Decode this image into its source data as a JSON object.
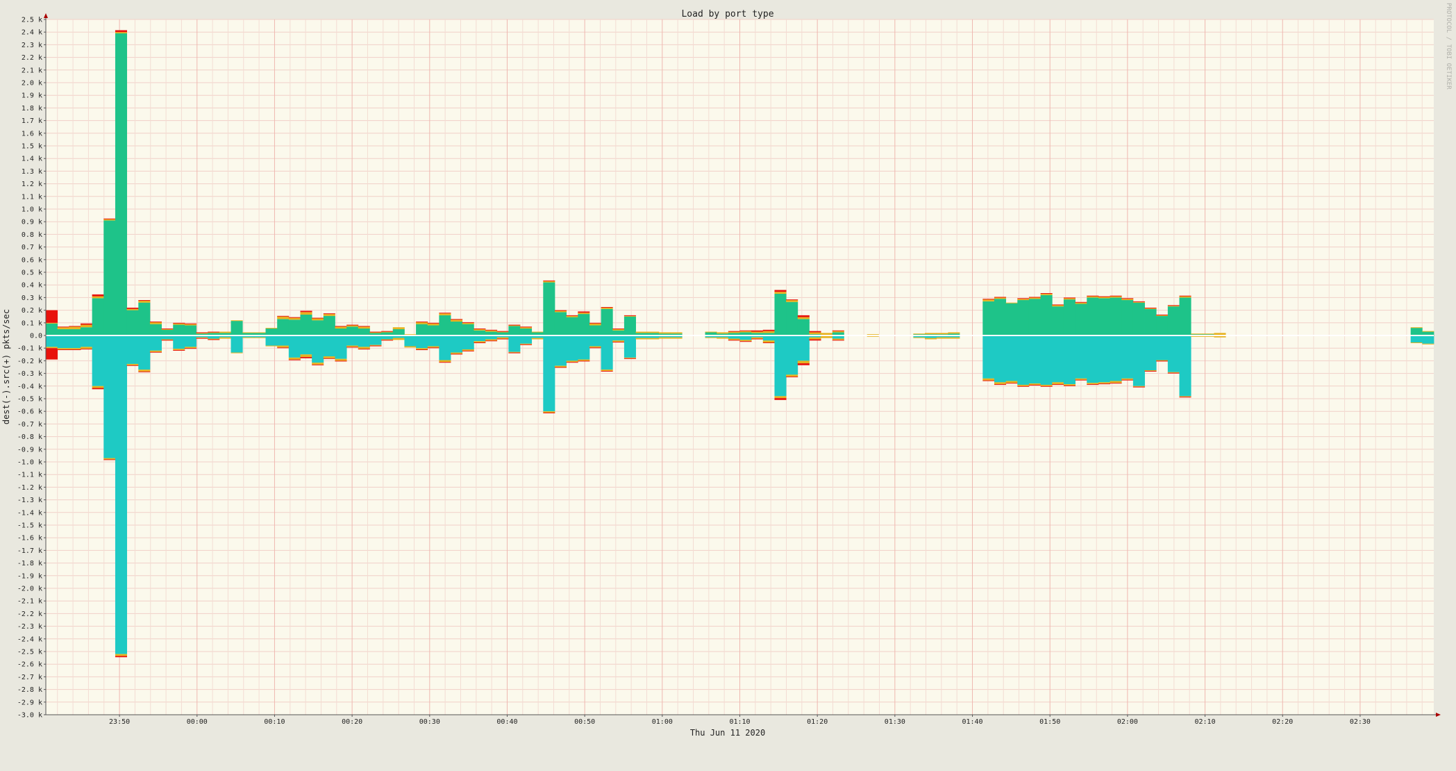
{
  "chart_data": {
    "type": "bar",
    "title": "Load by port type",
    "xlabel": "Thu Jun 11 2020",
    "ylabel": "dest(-).src(+)  pkts/sec",
    "watermark": "PROTOCOL / TOBI OETIKER",
    "ylim": [
      -3000,
      2500
    ],
    "y_ticks": [
      2500,
      2400,
      2300,
      2200,
      2100,
      2000,
      1900,
      1800,
      1700,
      1600,
      1500,
      1400,
      1300,
      1200,
      1100,
      1000,
      900,
      800,
      700,
      600,
      500,
      400,
      300,
      200,
      100,
      0,
      -100,
      -200,
      -300,
      -400,
      -500,
      -600,
      -700,
      -800,
      -900,
      -1000,
      -1100,
      -1200,
      -1300,
      -1400,
      -1500,
      -1600,
      -1700,
      -1800,
      -1900,
      -2000,
      -2100,
      -2200,
      -2300,
      -2400,
      -2500,
      -2600,
      -2700,
      -2800,
      -2900,
      -3000
    ],
    "y_tick_labels": [
      "2.5 k",
      "2.4 k",
      "2.3 k",
      "2.2 k",
      "2.1 k",
      "2.0 k",
      "1.9 k",
      "1.8 k",
      "1.7 k",
      "1.6 k",
      "1.5 k",
      "1.4 k",
      "1.3 k",
      "1.2 k",
      "1.1 k",
      "1.0 k",
      "0.9 k",
      "0.8 k",
      "0.7 k",
      "0.6 k",
      "0.5 k",
      "0.4 k",
      "0.3 k",
      "0.2 k",
      "0.1 k",
      "0.0",
      "-0.1 k",
      "-0.2 k",
      "-0.3 k",
      "-0.4 k",
      "-0.5 k",
      "-0.6 k",
      "-0.7 k",
      "-0.8 k",
      "-0.9 k",
      "-1.0 k",
      "-1.1 k",
      "-1.2 k",
      "-1.3 k",
      "-1.4 k",
      "-1.5 k",
      "-1.6 k",
      "-1.7 k",
      "-1.8 k",
      "-1.9 k",
      "-2.0 k",
      "-2.1 k",
      "-2.2 k",
      "-2.3 k",
      "-2.4 k",
      "-2.5 k",
      "-2.6 k",
      "-2.7 k",
      "-2.8 k",
      "-2.9 k",
      "-3.0 k"
    ],
    "x_time_range": [
      "23:40:30",
      "02:39:30"
    ],
    "interval_minutes": 1.5,
    "x_tick_labels": [
      {
        "time": "23:50",
        "label": "23:50"
      },
      {
        "time": "00:00",
        "label": "00:00"
      },
      {
        "time": "00:10",
        "label": "00:10"
      },
      {
        "time": "00:20",
        "label": "00:20"
      },
      {
        "time": "00:30",
        "label": "00:30"
      },
      {
        "time": "00:40",
        "label": "00:40"
      },
      {
        "time": "00:50",
        "label": "00:50"
      },
      {
        "time": "01:00",
        "label": "01:00"
      },
      {
        "time": "01:10",
        "label": "01:10"
      },
      {
        "time": "01:20",
        "label": "01:20"
      },
      {
        "time": "01:30",
        "label": "01:30"
      },
      {
        "time": "01:40",
        "label": "01:40"
      },
      {
        "time": "01:50",
        "label": "01:50"
      },
      {
        "time": "02:00",
        "label": "02:00"
      },
      {
        "time": "02:10",
        "label": "02:10"
      },
      {
        "time": "02:20",
        "label": "02:20"
      },
      {
        "time": "02:30",
        "label": "02:30"
      }
    ],
    "grid": true,
    "colors": {
      "background": "#e9e8df",
      "plot_background": "#fbf9ec",
      "grid_minor": "#f3dcd3",
      "grid_major": "#efb8b0",
      "src_main": "#1ec389",
      "dest_main": "#1ecac4",
      "yellow": "#e6b21f",
      "red": "#e8120c",
      "zero_line": "#ffffff",
      "axis_arrow": "#aa0000"
    },
    "series": [
      {
        "color": "#1ec389",
        "direction": "src",
        "values": [
          95,
          50,
          50,
          65,
          295,
          910,
          2390,
          200,
          260,
          90,
          45,
          85,
          80,
          15,
          20,
          20,
          115,
          20,
          20,
          55,
          130,
          125,
          165,
          120,
          155,
          55,
          70,
          55,
          20,
          25,
          50,
          0,
          90,
          80,
          160,
          110,
          90,
          40,
          30,
          25,
          75,
          55,
          25,
          420,
          185,
          145,
          170,
          80,
          210,
          40,
          150,
          20,
          20,
          15,
          15,
          0,
          0,
          25,
          15,
          20,
          25,
          20,
          20,
          330,
          265,
          130,
          10,
          0,
          25,
          0,
          0,
          0,
          0,
          0,
          0,
          10,
          10,
          10,
          15,
          0,
          0,
          270,
          290,
          255,
          280,
          290,
          320,
          230,
          285,
          250,
          300,
          295,
          300,
          280,
          260,
          210,
          155,
          230,
          300,
          10,
          10,
          5,
          0,
          0,
          0,
          0,
          0,
          0,
          0,
          0,
          0,
          0,
          0,
          0,
          0,
          0,
          0,
          0,
          60,
          30
        ]
      },
      {
        "color": "#e6b21f",
        "direction": "src",
        "values": [
          5,
          15,
          20,
          20,
          15,
          10,
          10,
          10,
          15,
          15,
          5,
          10,
          10,
          5,
          5,
          10,
          5,
          5,
          5,
          5,
          20,
          15,
          20,
          15,
          15,
          15,
          10,
          15,
          5,
          5,
          15,
          10,
          15,
          15,
          15,
          15,
          10,
          10,
          10,
          5,
          5,
          10,
          5,
          10,
          10,
          10,
          10,
          15,
          10,
          10,
          5,
          10,
          10,
          10,
          10,
          0,
          0,
          5,
          10,
          10,
          10,
          10,
          15,
          15,
          15,
          15,
          15,
          20,
          10,
          0,
          0,
          10,
          0,
          0,
          0,
          5,
          10,
          10,
          10,
          0,
          0,
          15,
          10,
          5,
          10,
          10,
          10,
          10,
          10,
          10,
          10,
          10,
          10,
          10,
          5,
          5,
          5,
          5,
          10,
          5,
          5,
          15,
          0,
          0,
          0,
          0,
          0,
          0,
          0,
          0,
          0,
          0,
          0,
          0,
          0,
          0,
          0,
          0,
          5,
          5
        ]
      },
      {
        "color": "#e8120c",
        "direction": "src",
        "values": [
          100,
          5,
          5,
          10,
          15,
          5,
          15,
          10,
          5,
          5,
          5,
          5,
          5,
          5,
          5,
          0,
          0,
          0,
          0,
          0,
          5,
          5,
          10,
          5,
          5,
          5,
          5,
          5,
          5,
          5,
          0,
          0,
          5,
          5,
          5,
          5,
          5,
          5,
          5,
          5,
          5,
          5,
          0,
          5,
          5,
          5,
          10,
          5,
          5,
          5,
          5,
          0,
          0,
          0,
          0,
          0,
          0,
          0,
          0,
          5,
          5,
          10,
          10,
          15,
          5,
          15,
          10,
          0,
          5,
          0,
          0,
          0,
          0,
          0,
          0,
          0,
          0,
          0,
          0,
          0,
          0,
          5,
          5,
          0,
          5,
          5,
          5,
          5,
          5,
          5,
          5,
          5,
          5,
          5,
          5,
          5,
          5,
          5,
          5,
          0,
          0,
          0,
          0,
          0,
          0,
          0,
          0,
          0,
          0,
          0,
          0,
          0,
          0,
          0,
          0,
          0,
          0,
          0,
          0,
          0
        ]
      },
      {
        "color": "#1ecac4",
        "direction": "dest",
        "values": [
          90,
          100,
          100,
          90,
          400,
          970,
          2520,
          225,
          270,
          120,
          30,
          105,
          90,
          15,
          25,
          15,
          135,
          15,
          15,
          80,
          80,
          175,
          150,
          215,
          165,
          185,
          80,
          90,
          75,
          30,
          20,
          85,
          100,
          85,
          195,
          135,
          110,
          45,
          30,
          15,
          130,
          65,
          20,
          600,
          240,
          200,
          190,
          85,
          270,
          40,
          175,
          20,
          20,
          15,
          15,
          0,
          0,
          15,
          15,
          25,
          35,
          15,
          40,
          480,
          310,
          200,
          15,
          0,
          25,
          0,
          0,
          0,
          0,
          0,
          0,
          15,
          20,
          15,
          15,
          0,
          0,
          340,
          370,
          360,
          390,
          380,
          390,
          370,
          385,
          340,
          375,
          370,
          360,
          340,
          400,
          275,
          195,
          290,
          480,
          5,
          5,
          5,
          0,
          0,
          0,
          0,
          0,
          0,
          0,
          0,
          0,
          0,
          0,
          0,
          0,
          0,
          0,
          0,
          55,
          65
        ]
      },
      {
        "color": "#e6b21f",
        "direction": "dest",
        "values": [
          10,
          10,
          10,
          15,
          15,
          10,
          15,
          10,
          15,
          10,
          5,
          10,
          10,
          5,
          5,
          10,
          5,
          5,
          5,
          5,
          15,
          15,
          20,
          15,
          15,
          15,
          10,
          15,
          5,
          5,
          15,
          10,
          10,
          10,
          15,
          10,
          10,
          10,
          10,
          10,
          5,
          5,
          10,
          10,
          10,
          10,
          10,
          10,
          10,
          10,
          5,
          10,
          10,
          10,
          10,
          0,
          0,
          5,
          10,
          10,
          10,
          10,
          15,
          15,
          15,
          20,
          15,
          20,
          10,
          0,
          0,
          10,
          0,
          0,
          0,
          5,
          10,
          10,
          10,
          0,
          0,
          15,
          15,
          15,
          10,
          10,
          10,
          15,
          10,
          10,
          10,
          10,
          15,
          10,
          5,
          5,
          5,
          5,
          5,
          5,
          5,
          10,
          0,
          0,
          0,
          0,
          0,
          0,
          0,
          0,
          0,
          0,
          0,
          0,
          0,
          0,
          0,
          0,
          5,
          5
        ]
      },
      {
        "color": "#e8120c",
        "direction": "dest",
        "values": [
          90,
          5,
          5,
          5,
          10,
          5,
          10,
          5,
          5,
          5,
          5,
          5,
          5,
          5,
          5,
          0,
          0,
          0,
          0,
          0,
          5,
          5,
          10,
          5,
          5,
          5,
          5,
          5,
          5,
          5,
          0,
          0,
          5,
          5,
          5,
          5,
          5,
          5,
          5,
          5,
          5,
          5,
          0,
          5,
          5,
          5,
          5,
          5,
          5,
          5,
          5,
          0,
          0,
          0,
          0,
          0,
          0,
          0,
          0,
          5,
          5,
          5,
          5,
          15,
          5,
          15,
          10,
          0,
          5,
          0,
          0,
          0,
          0,
          0,
          0,
          0,
          0,
          0,
          0,
          0,
          0,
          5,
          5,
          5,
          5,
          5,
          5,
          5,
          5,
          5,
          5,
          5,
          5,
          5,
          5,
          5,
          5,
          5,
          5,
          0,
          0,
          0,
          0,
          0,
          0,
          0,
          0,
          0,
          0,
          0,
          0,
          0,
          0,
          0,
          0,
          0,
          0,
          0,
          0,
          0
        ]
      }
    ]
  }
}
